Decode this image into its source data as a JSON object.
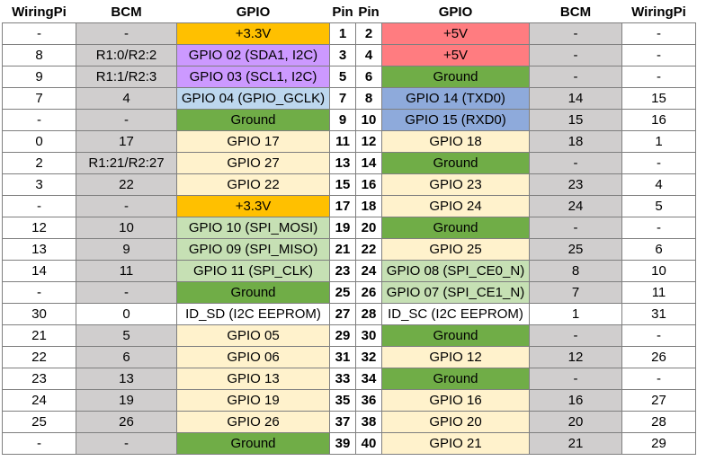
{
  "headers": [
    "WiringPi",
    "BCM",
    "GPIO",
    "Pin",
    "Pin",
    "GPIO",
    "BCM",
    "WiringPi"
  ],
  "rows": [
    {
      "lw": "-",
      "lb": "-",
      "lg": "+3.3V",
      "lc": "power33",
      "lp": "1",
      "rp": "2",
      "rg": "+5V",
      "rc": "power5",
      "rb": "-",
      "rw": "-",
      "lbg": "gray",
      "rbg": "gray"
    },
    {
      "lw": "8",
      "lb": "R1:0/R2:2",
      "lg": "GPIO 02 (SDA1, I2C)",
      "lc": "i2c",
      "lp": "3",
      "rp": "4",
      "rg": "+5V",
      "rc": "power5",
      "rb": "-",
      "rw": "-",
      "lbg": "gray",
      "rbg": "gray"
    },
    {
      "lw": "9",
      "lb": "R1:1/R2:3",
      "lg": "GPIO 03 (SCL1, I2C)",
      "lc": "i2c",
      "lp": "5",
      "rp": "6",
      "rg": "Ground",
      "rc": "ground",
      "rb": "-",
      "rw": "-",
      "lbg": "gray",
      "rbg": "gray"
    },
    {
      "lw": "7",
      "lb": "4",
      "lg": "GPIO 04 (GPIO_GCLK)",
      "lc": "gclk",
      "lp": "7",
      "rp": "8",
      "rg": "GPIO 14 (TXD0)",
      "rc": "uart",
      "rb": "14",
      "rw": "15",
      "lbg": "gray",
      "rbg": "gray"
    },
    {
      "lw": "-",
      "lb": "-",
      "lg": "Ground",
      "lc": "ground",
      "lp": "9",
      "rp": "10",
      "rg": "GPIO 15 (RXD0)",
      "rc": "uart",
      "rb": "15",
      "rw": "16",
      "lbg": "gray",
      "rbg": "gray"
    },
    {
      "lw": "0",
      "lb": "17",
      "lg": "GPIO 17",
      "lc": "gpio",
      "lp": "11",
      "rp": "12",
      "rg": "GPIO 18",
      "rc": "gpio",
      "rb": "18",
      "rw": "1",
      "lbg": "gray",
      "rbg": "gray"
    },
    {
      "lw": "2",
      "lb": "R1:21/R2:27",
      "lg": "GPIO 27",
      "lc": "gpio",
      "lp": "13",
      "rp": "14",
      "rg": "Ground",
      "rc": "ground",
      "rb": "-",
      "rw": "-",
      "lbg": "gray",
      "rbg": "gray"
    },
    {
      "lw": "3",
      "lb": "22",
      "lg": "GPIO 22",
      "lc": "gpio",
      "lp": "15",
      "rp": "16",
      "rg": "GPIO 23",
      "rc": "gpio",
      "rb": "23",
      "rw": "4",
      "lbg": "gray",
      "rbg": "gray"
    },
    {
      "lw": "-",
      "lb": "-",
      "lg": "+3.3V",
      "lc": "power33",
      "lp": "17",
      "rp": "18",
      "rg": "GPIO 24",
      "rc": "gpio",
      "rb": "24",
      "rw": "5",
      "lbg": "gray",
      "rbg": "gray"
    },
    {
      "lw": "12",
      "lb": "10",
      "lg": "GPIO 10 (SPI_MOSI)",
      "lc": "spi",
      "lp": "19",
      "rp": "20",
      "rg": "Ground",
      "rc": "ground",
      "rb": "-",
      "rw": "-",
      "lbg": "gray",
      "rbg": "gray"
    },
    {
      "lw": "13",
      "lb": "9",
      "lg": "GPIO 09 (SPI_MISO)",
      "lc": "spi",
      "lp": "21",
      "rp": "22",
      "rg": "GPIO 25",
      "rc": "gpio",
      "rb": "25",
      "rw": "6",
      "lbg": "gray",
      "rbg": "gray"
    },
    {
      "lw": "14",
      "lb": "11",
      "lg": "GPIO 11 (SPI_CLK)",
      "lc": "spi",
      "lp": "23",
      "rp": "24",
      "rg": "GPIO 08 (SPI_CE0_N)",
      "rc": "spi",
      "rb": "8",
      "rw": "10",
      "lbg": "gray",
      "rbg": "gray"
    },
    {
      "lw": "-",
      "lb": "-",
      "lg": "Ground",
      "lc": "ground",
      "lp": "25",
      "rp": "26",
      "rg": "GPIO 07 (SPI_CE1_N)",
      "rc": "spi",
      "rb": "7",
      "rw": "11",
      "lbg": "gray",
      "rbg": "gray"
    },
    {
      "lw": "30",
      "lb": "0",
      "lg": "ID_SD (I2C EEPROM)",
      "lc": "plain",
      "lp": "27",
      "rp": "28",
      "rg": "ID_SC (I2C EEPROM)",
      "rc": "plain",
      "rb": "1",
      "rw": "31",
      "lbg": "plain",
      "rbg": "plain"
    },
    {
      "lw": "21",
      "lb": "5",
      "lg": "GPIO 05",
      "lc": "gpio",
      "lp": "29",
      "rp": "30",
      "rg": "Ground",
      "rc": "ground",
      "rb": "-",
      "rw": "-",
      "lbg": "gray",
      "rbg": "gray"
    },
    {
      "lw": "22",
      "lb": "6",
      "lg": "GPIO 06",
      "lc": "gpio",
      "lp": "31",
      "rp": "32",
      "rg": "GPIO 12",
      "rc": "gpio",
      "rb": "12",
      "rw": "26",
      "lbg": "gray",
      "rbg": "gray"
    },
    {
      "lw": "23",
      "lb": "13",
      "lg": "GPIO 13",
      "lc": "gpio",
      "lp": "33",
      "rp": "34",
      "rg": "Ground",
      "rc": "ground",
      "rb": "-",
      "rw": "-",
      "lbg": "gray",
      "rbg": "gray"
    },
    {
      "lw": "24",
      "lb": "19",
      "lg": "GPIO 19",
      "lc": "gpio",
      "lp": "35",
      "rp": "36",
      "rg": "GPIO 16",
      "rc": "gpio",
      "rb": "16",
      "rw": "27",
      "lbg": "gray",
      "rbg": "gray"
    },
    {
      "lw": "25",
      "lb": "26",
      "lg": "GPIO 26",
      "lc": "gpio",
      "lp": "37",
      "rp": "38",
      "rg": "GPIO 20",
      "rc": "gpio",
      "rb": "20",
      "rw": "28",
      "lbg": "gray",
      "rbg": "gray"
    },
    {
      "lw": "-",
      "lb": "-",
      "lg": "Ground",
      "lc": "ground",
      "lp": "39",
      "rp": "40",
      "rg": "GPIO 21",
      "rc": "gpio",
      "rb": "21",
      "rw": "29",
      "lbg": "gray",
      "rbg": "gray"
    }
  ],
  "colors": {
    "gray": "#d0cece",
    "power33": "#ffc000",
    "power5": "#ff7c80",
    "i2c": "#cc99ff",
    "ground": "#70ad47",
    "gpio": "#fff2cc",
    "spi": "#c6e0b4",
    "uart": "#8eaadb",
    "gclk": "#bdd7ee",
    "plain": "#ffffff"
  }
}
